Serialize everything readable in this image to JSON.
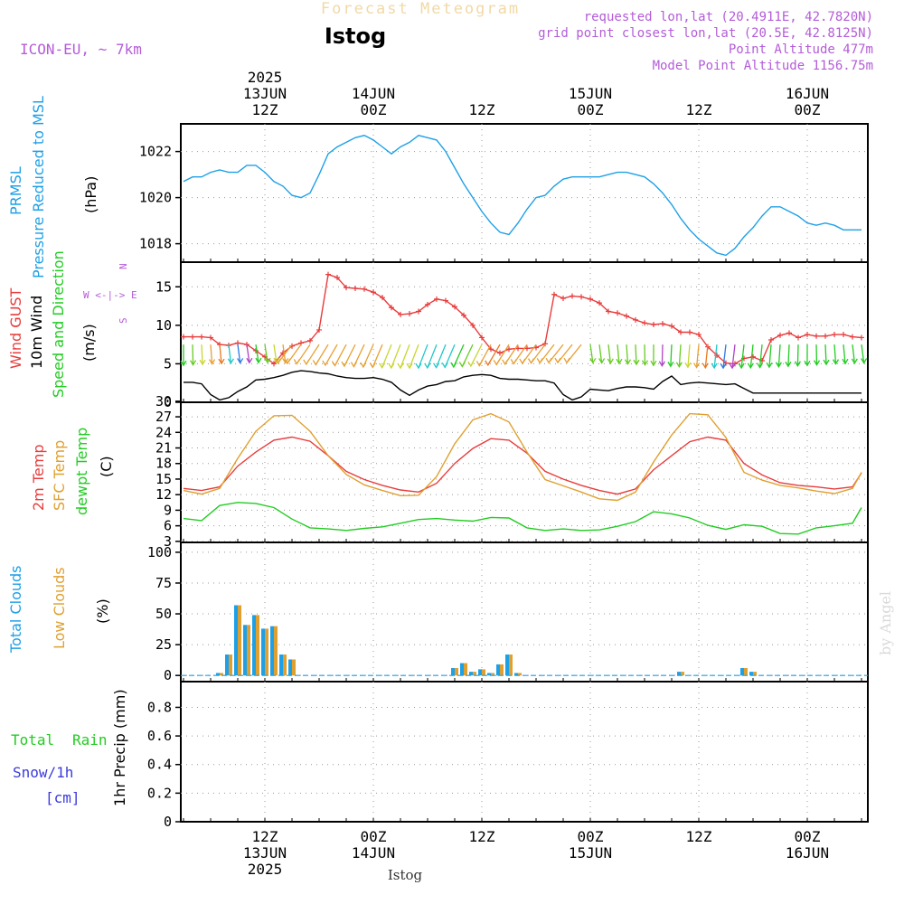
{
  "header": {
    "banner": "Forecast Meteogram",
    "station": "Istog",
    "model": "ICON-EU, ~ 7km",
    "requested": "requested lon,lat (20.4911E, 42.7820N)",
    "grid_point": "grid point closest lon,lat (20.5E, 42.8125N)",
    "point_altitude": "Point Altitude 477m",
    "model_altitude": "Model Point Altitude 1156.75m",
    "watermark": "by Angel",
    "footer_station": "Istog"
  },
  "colors": {
    "pressure": "#1ea0e6",
    "gust": "#e83c3c",
    "wind": "#000000",
    "temp": "#e83c3c",
    "sfc_temp": "#e0a030",
    "dewpt": "#22cc22",
    "total_clouds": "#1ea0e6",
    "low_clouds": "#e0a030",
    "rain": "#22cc22",
    "snow": "#3b3bdc",
    "label_purple": "#b45cd8"
  },
  "time_axis": {
    "top": [
      {
        "t": 9,
        "lines": [
          "2025",
          "13JUN",
          "12Z"
        ]
      },
      {
        "t": 21,
        "lines": [
          "14JUN",
          "00Z"
        ]
      },
      {
        "t": 33,
        "lines": [
          "12Z"
        ]
      },
      {
        "t": 45,
        "lines": [
          "15JUN",
          "00Z"
        ]
      },
      {
        "t": 57,
        "lines": [
          "12Z"
        ]
      },
      {
        "t": 69,
        "lines": [
          "16JUN",
          "00Z"
        ]
      }
    ],
    "bottom": [
      {
        "t": 9,
        "lines": [
          "12Z",
          "13JUN",
          "2025"
        ]
      },
      {
        "t": 21,
        "lines": [
          "00Z",
          "14JUN"
        ]
      },
      {
        "t": 33,
        "lines": [
          "12Z"
        ]
      },
      {
        "t": 45,
        "lines": [
          "00Z",
          "15JUN"
        ]
      },
      {
        "t": 57,
        "lines": [
          "12Z"
        ]
      },
      {
        "t": 69,
        "lines": [
          "00Z",
          "16JUN"
        ]
      }
    ]
  },
  "panels": {
    "pressure": {
      "labels": [
        "PRMSL",
        "Pressure Reduced to MSL",
        "(hPa)"
      ]
    },
    "wind": {
      "labels": [
        "Wind GUST",
        "10m Wind",
        "Speed and Direction",
        "(m/s)"
      ],
      "compass": [
        "N",
        "W <-|-> E",
        "S"
      ]
    },
    "temp": {
      "labels": [
        "2m Temp",
        "SFC Temp",
        "dewpt Temp",
        "(C)"
      ]
    },
    "clouds": {
      "labels": [
        "Total Clouds",
        "Low Clouds",
        "(%)"
      ]
    },
    "precip": {
      "labels": [
        "Total",
        "Rain",
        "Snow/1h",
        "[cm]",
        "1hr Precip (mm)"
      ]
    }
  },
  "chart_data": [
    {
      "type": "line",
      "title": "PRMSL Pressure Reduced to MSL",
      "ylabel": "(hPa)",
      "ylim": [
        1017.2,
        1023.2
      ],
      "yticks": [
        1018,
        1020,
        1022
      ],
      "grid": true,
      "series": [
        {
          "name": "PRMSL",
          "x": [
            0,
            1,
            2,
            3,
            4,
            5,
            6,
            7,
            8,
            9,
            10,
            11,
            12,
            13,
            14,
            15,
            16,
            17,
            18,
            19,
            20,
            21,
            22,
            23,
            24,
            25,
            26,
            27,
            28,
            29,
            30,
            31,
            32,
            33,
            34,
            35,
            36,
            37,
            38,
            39,
            40,
            41,
            42,
            43,
            44,
            45,
            46,
            47,
            48,
            49,
            50,
            51,
            52,
            53,
            54,
            55,
            56,
            57,
            58,
            59,
            60,
            61,
            62,
            63,
            64,
            65,
            66,
            67,
            68,
            69,
            70,
            71,
            72,
            73,
            74,
            75
          ],
          "values": [
            1020.7,
            1020.9,
            1020.9,
            1021.1,
            1021.2,
            1021.1,
            1021.1,
            1021.4,
            1021.4,
            1021.1,
            1020.7,
            1020.5,
            1020.1,
            1020.0,
            1020.2,
            1021.0,
            1021.9,
            1022.2,
            1022.4,
            1022.6,
            1022.7,
            1022.5,
            1022.2,
            1021.9,
            1022.2,
            1022.4,
            1022.7,
            1022.6,
            1022.5,
            1022.0,
            1021.3,
            1020.6,
            1020.0,
            1019.4,
            1018.9,
            1018.5,
            1018.4,
            1018.9,
            1019.5,
            1020.0,
            1020.1,
            1020.5,
            1020.8,
            1020.9,
            1020.9,
            1020.9,
            1020.9,
            1021.0,
            1021.1,
            1021.1,
            1021.0,
            1020.9,
            1020.6,
            1020.2,
            1019.7,
            1019.1,
            1018.6,
            1018.2,
            1017.9,
            1017.6,
            1017.5,
            1017.8,
            1018.3,
            1018.7,
            1019.2,
            1019.6,
            1019.6,
            1019.4,
            1019.2,
            1018.9,
            1018.8,
            1018.9,
            1018.8,
            1018.6,
            1018.6,
            1018.6
          ]
        }
      ]
    },
    {
      "type": "line",
      "title": "Wind GUST / 10m Wind Speed and Direction",
      "ylabel": "(m/s)",
      "ylim": [
        0,
        18.2
      ],
      "yticks": [
        0,
        5,
        10,
        15
      ],
      "grid": true,
      "series": [
        {
          "name": "Wind GUST",
          "x": [
            0,
            1,
            2,
            3,
            4,
            5,
            6,
            7,
            8,
            9,
            10,
            11,
            12,
            13,
            14,
            15,
            16,
            17,
            18,
            19,
            20,
            21,
            22,
            23,
            24,
            25,
            26,
            27,
            28,
            29,
            30,
            31,
            32,
            33,
            34,
            35,
            36,
            37,
            38,
            39,
            40,
            41,
            42,
            43,
            44,
            45,
            46,
            47,
            48,
            49,
            50,
            51,
            52,
            53,
            54,
            55,
            56,
            57,
            58,
            59,
            60,
            61,
            62,
            63,
            64,
            65,
            66,
            67,
            68,
            69,
            70,
            71,
            72,
            73,
            74,
            75
          ],
          "values": [
            8.5,
            8.5,
            8.5,
            8.4,
            7.5,
            7.4,
            7.7,
            7.5,
            6.7,
            5.9,
            5.0,
            6.4,
            7.3,
            7.7,
            8.0,
            9.4,
            16.6,
            16.2,
            14.9,
            14.8,
            14.7,
            14.3,
            13.6,
            12.3,
            11.4,
            11.5,
            11.8,
            12.7,
            13.4,
            13.2,
            12.4,
            11.3,
            10.0,
            8.4,
            6.9,
            6.4,
            6.9,
            7.0,
            7.0,
            7.1,
            7.6,
            14.0,
            13.5,
            13.8,
            13.7,
            13.4,
            12.9,
            11.8,
            11.6,
            11.2,
            10.7,
            10.3,
            10.1,
            10.2,
            9.9,
            9.1,
            9.1,
            8.8,
            7.2,
            6.1,
            5.1,
            5.0,
            5.7,
            5.9,
            5.4,
            8.1,
            8.7,
            9.0,
            8.4,
            8.8,
            8.6,
            8.6,
            8.8,
            8.8,
            8.5,
            8.4
          ]
        },
        {
          "name": "10m Wind",
          "x": [
            0,
            1,
            2,
            3,
            4,
            5,
            6,
            7,
            8,
            9,
            10,
            11,
            12,
            13,
            14,
            15,
            16,
            17,
            18,
            19,
            20,
            21,
            22,
            23,
            24,
            25,
            26,
            27,
            28,
            29,
            30,
            31,
            32,
            33,
            34,
            35,
            36,
            37,
            38,
            39,
            40,
            41,
            42,
            43,
            44,
            45,
            46,
            47,
            48,
            49,
            50,
            51,
            52,
            53,
            54,
            55,
            56,
            57,
            58,
            59,
            60,
            61,
            62,
            63,
            64,
            65,
            66,
            67,
            68,
            69,
            70,
            71,
            72,
            73,
            74,
            75
          ],
          "values": [
            2.6,
            2.6,
            2.4,
            1.0,
            0.3,
            0.6,
            1.4,
            2.0,
            2.9,
            3.0,
            3.2,
            3.5,
            3.9,
            4.1,
            4.0,
            3.8,
            3.7,
            3.4,
            3.2,
            3.1,
            3.1,
            3.2,
            3.0,
            2.6,
            1.6,
            0.9,
            1.6,
            2.1,
            2.3,
            2.7,
            2.8,
            3.3,
            3.5,
            3.6,
            3.5,
            3.1,
            3.0,
            3.0,
            2.9,
            2.8,
            2.8,
            2.5,
            1.0,
            0.3,
            0.7,
            1.7,
            1.6,
            1.5,
            1.8,
            2.0,
            2.0,
            1.9,
            1.7,
            2.7,
            3.4,
            2.3,
            2.5,
            2.6,
            2.5,
            2.4,
            2.3,
            2.4,
            1.8,
            1.2,
            1.2,
            1.2,
            1.2,
            1.2,
            1.2,
            1.2,
            1.2,
            1.2,
            1.2,
            1.2,
            1.2,
            1.2
          ]
        }
      ]
    },
    {
      "type": "line",
      "title": "2m Temp / SFC Temp / dewpt Temp",
      "ylabel": "(C)",
      "ylim": [
        2.8,
        29.8
      ],
      "yticks": [
        3,
        6,
        9,
        12,
        15,
        18,
        21,
        24,
        27,
        30
      ],
      "grid": true,
      "series": [
        {
          "name": "2m Temp",
          "x": [
            0,
            2,
            4,
            6,
            8,
            10,
            12,
            14,
            16,
            18,
            20,
            22,
            24,
            26,
            28,
            30,
            32,
            34,
            36,
            38,
            40,
            42,
            44,
            46,
            48,
            50,
            52,
            54,
            56,
            58,
            60,
            62,
            64,
            66,
            68,
            70,
            72,
            74,
            75
          ],
          "values": [
            13.2,
            12.8,
            13.5,
            17.5,
            20.2,
            22.5,
            23.1,
            22.3,
            19.5,
            16.5,
            14.9,
            13.8,
            12.9,
            12.5,
            14.2,
            18.0,
            20.9,
            22.8,
            22.5,
            20.0,
            16.5,
            15.0,
            13.8,
            12.8,
            12.1,
            13.1,
            16.8,
            19.5,
            22.2,
            23.1,
            22.5,
            18.0,
            15.8,
            14.3,
            13.8,
            13.5,
            13.1,
            13.5,
            16.2
          ]
        },
        {
          "name": "SFC Temp",
          "x": [
            0,
            2,
            4,
            6,
            8,
            10,
            12,
            14,
            16,
            18,
            20,
            22,
            24,
            26,
            28,
            30,
            32,
            34,
            36,
            38,
            40,
            42,
            44,
            46,
            48,
            50,
            52,
            54,
            56,
            58,
            60,
            62,
            64,
            66,
            68,
            70,
            72,
            74,
            75
          ],
          "values": [
            12.8,
            12.1,
            13.2,
            19.0,
            24.2,
            27.2,
            27.3,
            24.2,
            19.5,
            15.9,
            13.9,
            12.8,
            11.8,
            11.9,
            15.5,
            21.8,
            26.4,
            27.6,
            26.0,
            20.2,
            14.9,
            13.7,
            12.5,
            11.2,
            10.9,
            12.5,
            18.3,
            23.5,
            27.6,
            27.4,
            23.0,
            16.3,
            14.8,
            13.8,
            13.3,
            12.7,
            12.2,
            13.2,
            16.3
          ]
        },
        {
          "name": "dewpt Temp",
          "x": [
            0,
            2,
            4,
            6,
            8,
            10,
            12,
            14,
            16,
            18,
            20,
            22,
            24,
            26,
            28,
            30,
            32,
            34,
            36,
            38,
            40,
            42,
            44,
            46,
            48,
            50,
            52,
            54,
            56,
            58,
            60,
            62,
            64,
            66,
            68,
            70,
            72,
            74,
            75
          ],
          "values": [
            7.4,
            7.0,
            9.9,
            10.5,
            10.3,
            9.5,
            7.3,
            5.6,
            5.4,
            5.1,
            5.5,
            5.8,
            6.5,
            7.2,
            7.4,
            7.1,
            6.9,
            7.6,
            7.5,
            5.6,
            5.1,
            5.4,
            5.1,
            5.2,
            5.9,
            6.8,
            8.7,
            8.3,
            7.5,
            6.1,
            5.3,
            6.2,
            5.9,
            4.5,
            4.4,
            5.6,
            6.0,
            6.5,
            9.5
          ]
        }
      ]
    },
    {
      "type": "bar",
      "title": "Total Clouds / Low Clouds",
      "ylabel": "(%)",
      "ylim": [
        -5,
        108
      ],
      "yticks": [
        0,
        25,
        50,
        75,
        100
      ],
      "grid": true,
      "series": [
        {
          "name": "Total Clouds",
          "x": [
            4,
            5,
            6,
            7,
            8,
            9,
            10,
            11,
            12,
            30,
            31,
            32,
            33,
            34,
            35,
            36,
            37,
            38,
            39,
            55,
            62,
            63
          ],
          "values": [
            2,
            17,
            57,
            41,
            49,
            38,
            40,
            17,
            13,
            6,
            10,
            3,
            5,
            2,
            9,
            17,
            2,
            0,
            0,
            3,
            6,
            3
          ]
        },
        {
          "name": "Low Clouds",
          "x": [
            4,
            5,
            6,
            7,
            8,
            9,
            10,
            11,
            12,
            30,
            31,
            32,
            33,
            34,
            35,
            36,
            37,
            38,
            39,
            55,
            62,
            63
          ],
          "values": [
            2,
            17,
            57,
            41,
            49,
            38,
            40,
            17,
            13,
            6,
            10,
            3,
            5,
            2,
            9,
            17,
            2,
            0,
            0,
            3,
            6,
            3
          ]
        }
      ]
    },
    {
      "type": "line",
      "title": "Total Rain / Snow",
      "ylabel": "1hr Precip (mm)",
      "ylim": [
        0,
        0.98
      ],
      "yticks": [
        0,
        0.2,
        0.4,
        0.6,
        0.8
      ],
      "grid": true,
      "series": [
        {
          "name": "Total Rain",
          "x": [
            0,
            75
          ],
          "values": [
            0,
            0
          ]
        }
      ]
    }
  ]
}
